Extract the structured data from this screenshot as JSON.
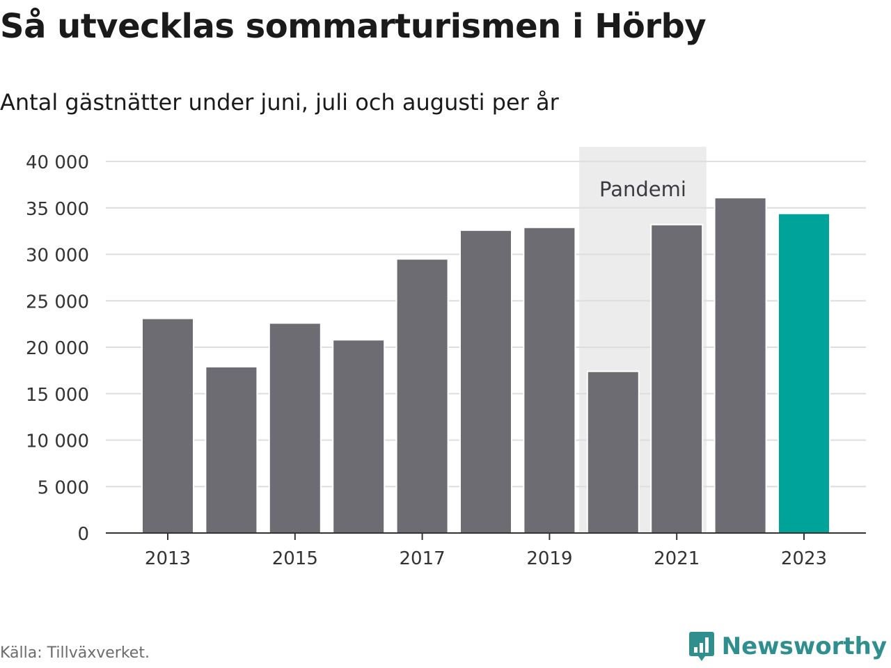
{
  "title": "Så utvecklas sommarturismen i Hörby",
  "subtitle": "Antal gästnätter under juni, juli och augusti per år",
  "source": "Källa: Tillväxverket.",
  "brand": "Newsworthy",
  "colors": {
    "bar": "#6d6c73",
    "highlight": "#00a399",
    "band": "#ececec",
    "grid": "#dddddd",
    "axis": "#333333",
    "brand": "#2f8f8f"
  },
  "icons": {
    "brand": "bar-chart-speech-bubble-icon"
  },
  "chart_data": {
    "type": "bar",
    "x": [
      2013,
      2014,
      2015,
      2016,
      2017,
      2018,
      2019,
      2020,
      2021,
      2022,
      2023
    ],
    "values": [
      23100,
      17900,
      22600,
      20800,
      29500,
      32600,
      32900,
      17400,
      33200,
      36100,
      34400
    ],
    "highlight_x": 2023,
    "ylim": [
      0,
      40000
    ],
    "yticks": [
      0,
      5000,
      10000,
      15000,
      20000,
      25000,
      30000,
      35000,
      40000
    ],
    "ytick_labels": [
      "0",
      "5 000",
      "10 000",
      "15 000",
      "20 000",
      "25 000",
      "30 000",
      "35 000",
      "40 000"
    ],
    "xticks": [
      2013,
      2015,
      2017,
      2019,
      2021,
      2023
    ],
    "xtick_labels": [
      "2013",
      "2015",
      "2017",
      "2019",
      "2021",
      "2023"
    ],
    "grid": true,
    "annotations": [
      {
        "label": "Pandemi",
        "x_from": 2020,
        "x_to": 2021
      }
    ]
  }
}
